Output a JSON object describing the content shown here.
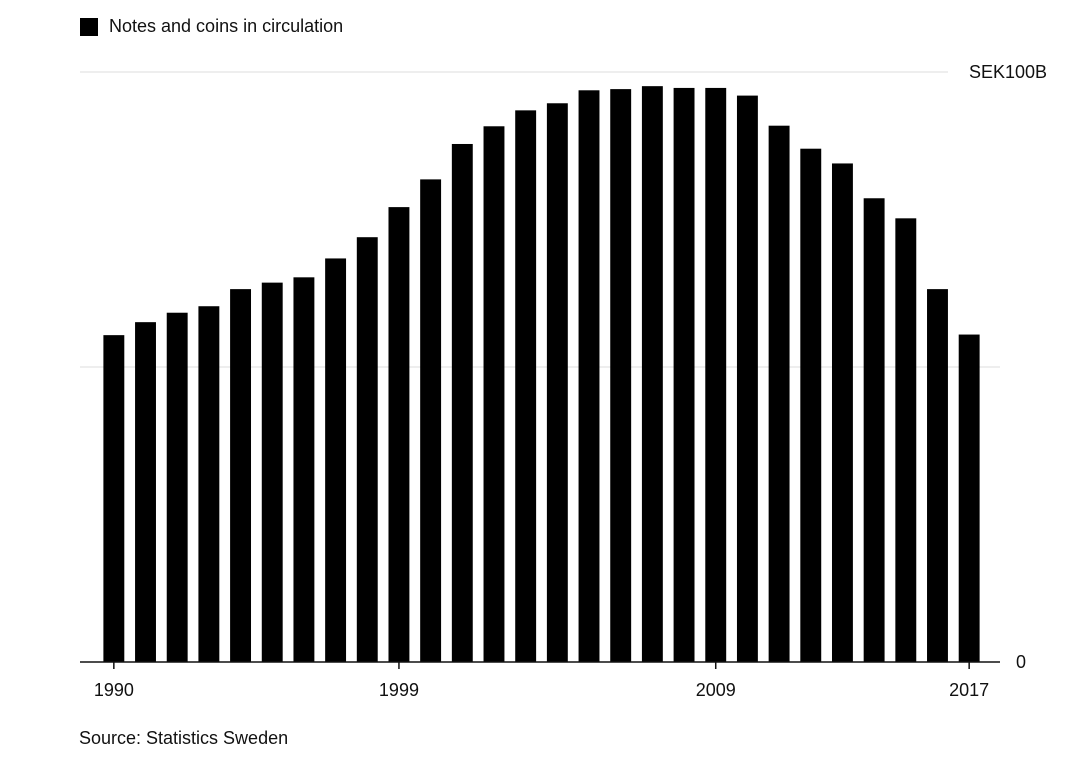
{
  "legend": {
    "label": "Notes and coins in circulation",
    "color": "#000000"
  },
  "source": "Source: Statistics Sweden",
  "chart_data": {
    "type": "bar",
    "title": "",
    "xlabel": "",
    "ylabel": "",
    "ylim": [
      0,
      100
    ],
    "y_tick_labels": [
      {
        "value": 0,
        "label": "0"
      },
      {
        "value": 100,
        "label": "SEK100B"
      }
    ],
    "x_tick_labels": [
      "1990",
      "1999",
      "2009",
      "2017"
    ],
    "grid": true,
    "legend_position": "top-left",
    "bar_color": "#000000",
    "categories": [
      "1990",
      "1991",
      "1992",
      "1993",
      "1994",
      "1995",
      "1996",
      "1997",
      "1998",
      "1999",
      "2000",
      "2001",
      "2002",
      "2003",
      "2004",
      "2005",
      "2006",
      "2007",
      "2008",
      "2009",
      "2010",
      "2011",
      "2012",
      "2013",
      "2014",
      "2015",
      "2016",
      "2017"
    ],
    "series": [
      {
        "values": [
          55.4,
          57.6,
          59.2,
          60.3,
          63.2,
          64.3,
          65.2,
          68.4,
          72.0,
          77.1,
          81.8,
          87.8,
          90.8,
          93.5,
          94.7,
          96.9,
          97.1,
          97.6,
          97.3,
          97.3,
          96.0,
          90.9,
          87.0,
          84.5,
          78.6,
          75.2,
          63.2,
          55.5
        ]
      }
    ]
  }
}
